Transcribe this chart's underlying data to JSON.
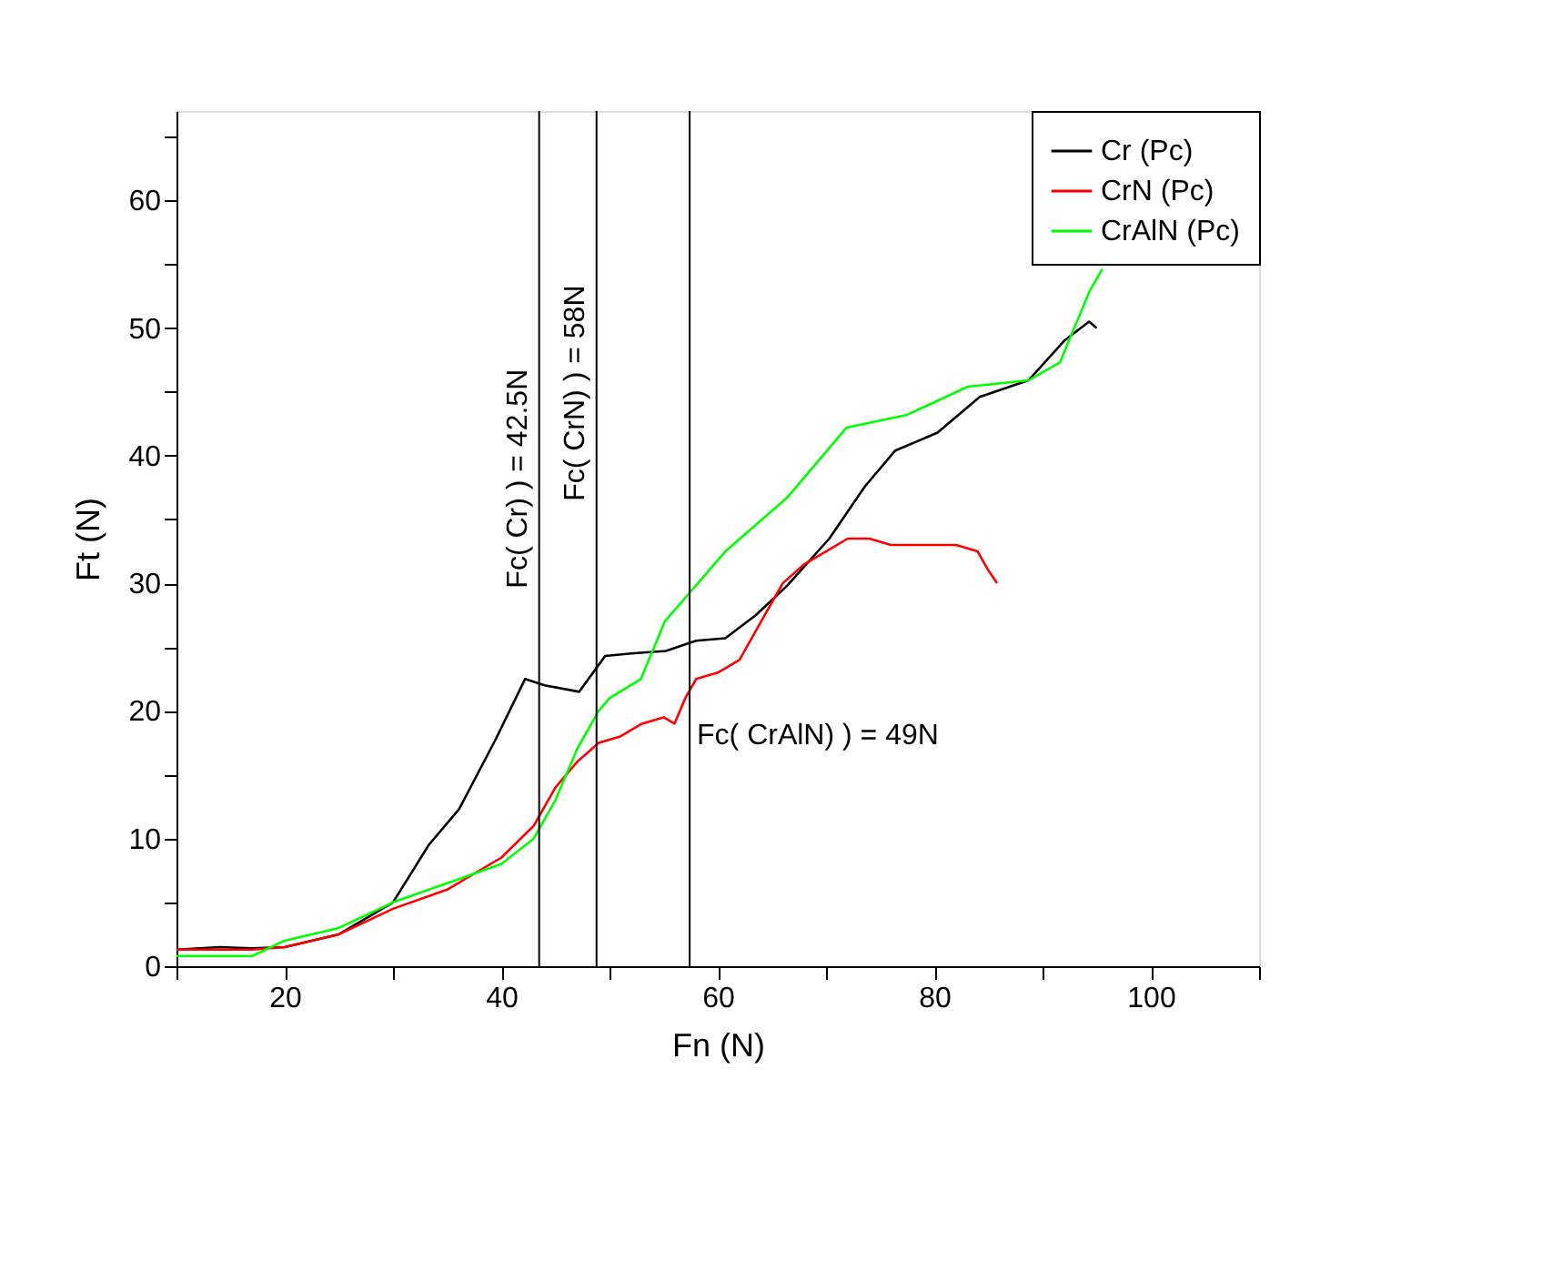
{
  "chart_data": {
    "type": "line",
    "xlabel": "Fn (N)",
    "ylabel": "Ft (N)",
    "xlim": [
      10,
      110
    ],
    "ylim": [
      0,
      67
    ],
    "xticks": [
      {
        "value": 10,
        "label": null
      },
      20,
      {
        "value": 30,
        "label": null
      },
      40,
      {
        "value": 50,
        "label": null
      },
      60,
      {
        "value": 70,
        "label": null
      },
      80,
      {
        "value": 90,
        "label": null
      },
      100,
      {
        "value": 110,
        "label": null
      }
    ],
    "yticks": [
      0,
      {
        "value": 5,
        "label": null
      },
      10,
      {
        "value": 15,
        "label": null
      },
      20,
      {
        "value": 25,
        "label": null
      },
      30,
      {
        "value": 35,
        "label": null
      },
      40,
      {
        "value": 45,
        "label": null
      },
      50,
      {
        "value": 55,
        "label": null
      },
      60,
      {
        "value": 65,
        "label": null
      }
    ],
    "grid": false,
    "legend": "top right",
    "marker": "none",
    "line_style": "solid",
    "series": [
      {
        "name": "Cr (Pc)",
        "color": "#000000",
        "x": [
          10,
          14,
          17,
          20,
          25,
          30,
          33.3,
          36.1,
          39.5,
          42.2,
          44,
          47.2,
          49.6,
          52,
          55.2,
          58,
          60.7,
          63.5,
          66.4,
          70.3,
          73.6,
          76.4,
          80.3,
          84.2,
          88.7,
          92,
          94.3,
          95
        ],
        "values": [
          1.3,
          1.5,
          1.4,
          1.5,
          2.5,
          5,
          9.5,
          12.3,
          17.8,
          22.5,
          22,
          21.5,
          24.3,
          24.5,
          24.7,
          25.5,
          25.7,
          27.5,
          29.8,
          33.5,
          37.6,
          40.4,
          41.8,
          44.6,
          45.9,
          49,
          50.5,
          50
        ]
      },
      {
        "name": "CrN (Pc)",
        "color": "#ff0000",
        "x": [
          10,
          14,
          17,
          20,
          25,
          30,
          35,
          40,
          43,
          45,
          47,
          49,
          51,
          53,
          55,
          56,
          57,
          58,
          60,
          62,
          64,
          66,
          68,
          70,
          72,
          74,
          76,
          78,
          80,
          82,
          84,
          85,
          85.8
        ],
        "values": [
          1.3,
          1.3,
          1.3,
          1.5,
          2.5,
          4.5,
          6,
          8.5,
          11,
          14,
          16,
          17.5,
          18,
          19,
          19.5,
          19,
          21,
          22.5,
          23,
          24,
          27,
          30,
          31.5,
          32.5,
          33.5,
          33.5,
          33,
          33,
          33,
          33,
          32.5,
          31,
          30
        ]
      },
      {
        "name": "CrAlN (Pc)",
        "color": "#00ff00",
        "x": [
          10,
          14,
          17,
          20,
          25,
          30,
          35,
          40,
          43,
          45,
          47,
          49,
          50,
          52.9,
          55.1,
          60.7,
          66.4,
          71.9,
          77.5,
          83.1,
          88.7,
          91.6,
          94.3,
          95.5
        ],
        "values": [
          0.8,
          0.8,
          0.8,
          2,
          3,
          5,
          6.5,
          8,
          10,
          13,
          17,
          20,
          21,
          22.5,
          27,
          32.5,
          36.7,
          42.2,
          43.2,
          45.4,
          45.9,
          47.3,
          52.8,
          54.6
        ]
      }
    ],
    "ref_lines": [
      {
        "axis": "x",
        "value": 43.5,
        "color": "#000000"
      },
      {
        "axis": "x",
        "value": 48.8,
        "color": "#000000"
      },
      {
        "axis": "x",
        "value": 57.4,
        "color": "#000000"
      }
    ],
    "annotations": [
      "Fc(  Cr)  )   = 42.5N",
      "Fc(  CrN)  )   = 58N",
      "Fc(  CrAlN)  )   = 49N"
    ]
  }
}
